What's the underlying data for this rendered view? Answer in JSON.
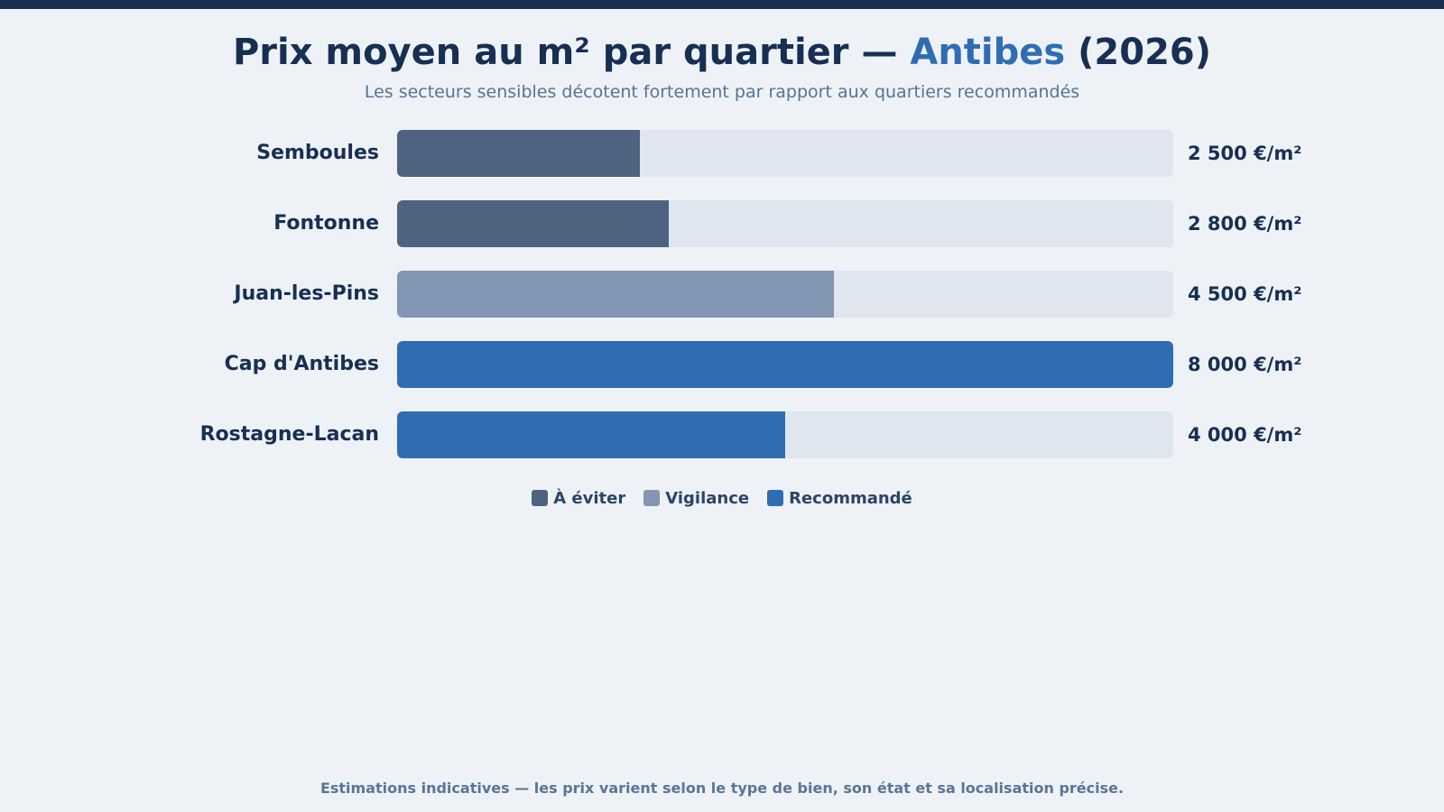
{
  "header": {
    "title_prefix": "Prix moyen au m² par quartier — ",
    "title_city": "Antibes",
    "title_suffix": " (2026)",
    "subtitle": "Les secteurs sensibles décotent fortement par rapport aux quartiers recommandés"
  },
  "chart_data": {
    "type": "bar",
    "orientation": "horizontal",
    "title": "Prix moyen au m² par quartier — Antibes (2026)",
    "subtitle": "Les secteurs sensibles décotent fortement par rapport aux quartiers recommandés",
    "xlim": [
      0,
      8000
    ],
    "grid": false,
    "legend_position": "bottom-center",
    "categories": [
      "Semboules",
      "Fontonne",
      "Juan-les-Pins",
      "Cap d'Antibes",
      "Rostagne-Lacan"
    ],
    "values": [
      2500,
      2800,
      4500,
      8000,
      4000
    ],
    "value_labels": [
      "2 500 €/m²",
      "2 800 €/m²",
      "4 500 €/m²",
      "8 000 €/m²",
      "4 000 €/m²"
    ],
    "groups": [
      "avoid",
      "avoid",
      "watch",
      "recommended",
      "recommended"
    ],
    "legend": [
      {
        "key": "avoid",
        "label": "À éviter",
        "color": "#4d6380"
      },
      {
        "key": "watch",
        "label": "Vigilance",
        "color": "#8295b2"
      },
      {
        "key": "recommended",
        "label": "Recommandé",
        "color": "#2f6db3"
      }
    ]
  },
  "footer": {
    "note": "Estimations indicatives — les prix varient selon le type de bien, son état et sa localisation précise."
  }
}
